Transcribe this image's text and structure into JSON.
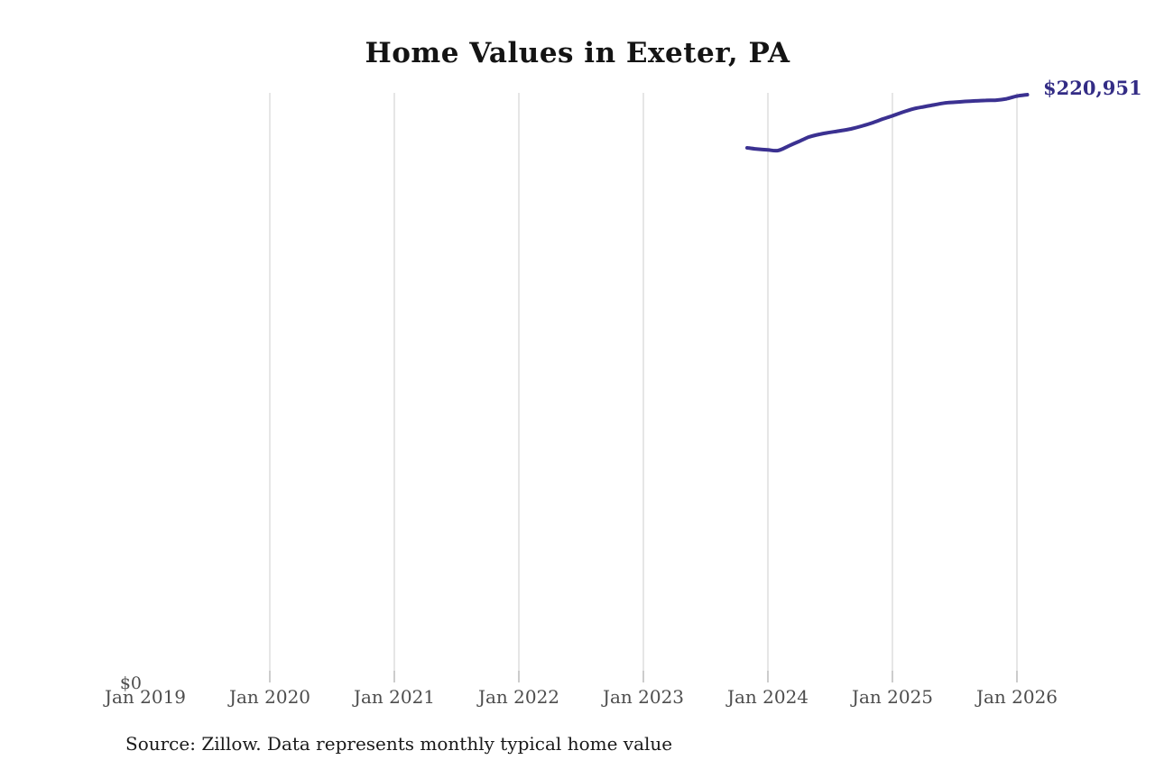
{
  "chart": {
    "title": "Home Values in Exeter, PA",
    "y_zero_label": "$0",
    "end_label": "$220,951",
    "source": "Source: Zillow. Data represents monthly typical home value",
    "colors": {
      "line": "#3b3191",
      "end_label": "#332c85",
      "gridline": "#cccccc",
      "tick": "#999999",
      "axis_text": "#4d4d4d",
      "title_text": "#141414",
      "source_text": "#1a1a1a"
    }
  },
  "chart_data": {
    "type": "line",
    "title": "Home Values in Exeter, PA",
    "xlabel": "",
    "ylabel": "",
    "x_tick_labels": [
      "Jan 2019",
      "Jan 2020",
      "Jan 2021",
      "Jan 2022",
      "Jan 2023",
      "Jan 2024",
      "Jan 2025",
      "Jan 2026"
    ],
    "y_tick_labels": [
      "$0"
    ],
    "grid": "vertical",
    "legend": "none",
    "ylim": [
      0,
      221900
    ],
    "end_annotation": "$220,951",
    "last_value": 220951,
    "x": [
      "Nov 2023",
      "Dec 2023",
      "Jan 2024",
      "Feb 2024",
      "Mar 2024",
      "Apr 2024",
      "May 2024",
      "Jun 2024",
      "Jul 2024",
      "Aug 2024",
      "Sep 2024",
      "Oct 2024",
      "Nov 2024",
      "Dec 2024",
      "Jan 2025",
      "Feb 2025",
      "Mar 2025",
      "Apr 2025",
      "May 2025",
      "Jun 2025",
      "Jul 2025",
      "Aug 2025",
      "Sep 2025",
      "Oct 2025",
      "Nov 2025",
      "Dec 2025",
      "Jan 2026",
      "Feb 2026"
    ],
    "values": [
      201000,
      200500,
      200200,
      200000,
      201700,
      203400,
      205100,
      206100,
      206800,
      207400,
      208100,
      209100,
      210300,
      211700,
      213000,
      214400,
      215600,
      216400,
      217100,
      217800,
      218100,
      218400,
      218600,
      218800,
      218900,
      219400,
      220400,
      220951
    ]
  }
}
